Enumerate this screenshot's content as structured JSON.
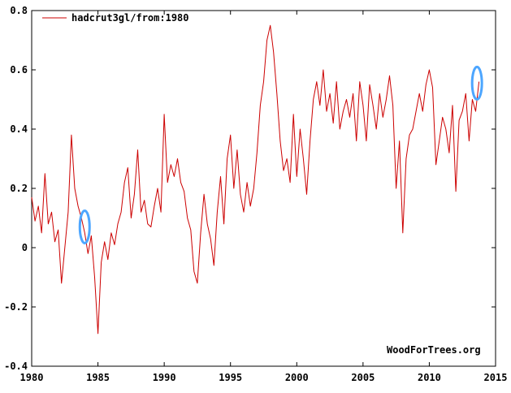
{
  "chart_data": {
    "type": "line",
    "title": "",
    "xlabel": "",
    "ylabel": "",
    "xlim": [
      1980,
      2015
    ],
    "ylim": [
      -0.4,
      0.8
    ],
    "grid": false,
    "legend_position": "top-left",
    "credit": "WoodForTrees.org",
    "x_ticks": [
      1980,
      1985,
      1990,
      1995,
      2000,
      2005,
      2010,
      2015
    ],
    "y_ticks": [
      -0.4,
      -0.2,
      0,
      0.2,
      0.4,
      0.6,
      0.8
    ],
    "y_tick_labels": [
      "-0.4",
      "-0.2",
      "0",
      "0.2",
      "0.4",
      "0.6",
      "0.8"
    ],
    "series": [
      {
        "name": "hadcrut3gl/from:1980",
        "color": "#cc0000",
        "x": [
          1980.0,
          1980.25,
          1980.5,
          1980.75,
          1981.0,
          1981.25,
          1981.5,
          1981.75,
          1982.0,
          1982.25,
          1982.5,
          1982.75,
          1983.0,
          1983.25,
          1983.5,
          1983.75,
          1984.0,
          1984.25,
          1984.5,
          1984.75,
          1985.0,
          1985.25,
          1985.5,
          1985.75,
          1986.0,
          1986.25,
          1986.5,
          1986.75,
          1987.0,
          1987.25,
          1987.5,
          1987.75,
          1988.0,
          1988.25,
          1988.5,
          1988.75,
          1989.0,
          1989.25,
          1989.5,
          1989.75,
          1990.0,
          1990.25,
          1990.5,
          1990.75,
          1991.0,
          1991.25,
          1991.5,
          1991.75,
          1992.0,
          1992.25,
          1992.5,
          1992.75,
          1993.0,
          1993.25,
          1993.5,
          1993.75,
          1994.0,
          1994.25,
          1994.5,
          1994.75,
          1995.0,
          1995.25,
          1995.5,
          1995.75,
          1996.0,
          1996.25,
          1996.5,
          1996.75,
          1997.0,
          1997.25,
          1997.5,
          1997.75,
          1998.0,
          1998.25,
          1998.5,
          1998.75,
          1999.0,
          1999.25,
          1999.5,
          1999.75,
          2000.0,
          2000.25,
          2000.5,
          2000.75,
          2001.0,
          2001.25,
          2001.5,
          2001.75,
          2002.0,
          2002.25,
          2002.5,
          2002.75,
          2003.0,
          2003.25,
          2003.5,
          2003.75,
          2004.0,
          2004.25,
          2004.5,
          2004.75,
          2005.0,
          2005.25,
          2005.5,
          2005.75,
          2006.0,
          2006.25,
          2006.5,
          2006.75,
          2007.0,
          2007.25,
          2007.5,
          2007.75,
          2008.0,
          2008.25,
          2008.5,
          2008.75,
          2009.0,
          2009.25,
          2009.5,
          2009.75,
          2010.0,
          2010.25,
          2010.5,
          2010.75,
          2011.0,
          2011.25,
          2011.5,
          2011.75,
          2012.0,
          2012.25,
          2012.5,
          2012.75,
          2013.0,
          2013.25,
          2013.5,
          2013.75
        ],
        "y": [
          0.17,
          0.09,
          0.14,
          0.05,
          0.25,
          0.08,
          0.12,
          0.02,
          0.06,
          -0.12,
          0.0,
          0.12,
          0.38,
          0.2,
          0.14,
          0.1,
          0.05,
          -0.02,
          0.04,
          -0.1,
          -0.29,
          -0.05,
          0.02,
          -0.04,
          0.05,
          0.01,
          0.08,
          0.12,
          0.22,
          0.27,
          0.1,
          0.18,
          0.33,
          0.12,
          0.16,
          0.08,
          0.07,
          0.14,
          0.2,
          0.12,
          0.45,
          0.22,
          0.28,
          0.24,
          0.3,
          0.22,
          0.19,
          0.1,
          0.06,
          -0.08,
          -0.12,
          0.05,
          0.18,
          0.08,
          0.03,
          -0.06,
          0.12,
          0.24,
          0.08,
          0.3,
          0.38,
          0.2,
          0.33,
          0.18,
          0.12,
          0.22,
          0.14,
          0.2,
          0.32,
          0.48,
          0.56,
          0.7,
          0.75,
          0.66,
          0.52,
          0.36,
          0.26,
          0.3,
          0.22,
          0.45,
          0.24,
          0.4,
          0.3,
          0.18,
          0.36,
          0.5,
          0.56,
          0.48,
          0.6,
          0.46,
          0.52,
          0.42,
          0.56,
          0.4,
          0.46,
          0.5,
          0.44,
          0.52,
          0.36,
          0.56,
          0.48,
          0.36,
          0.55,
          0.48,
          0.4,
          0.52,
          0.44,
          0.5,
          0.58,
          0.48,
          0.2,
          0.36,
          0.05,
          0.3,
          0.38,
          0.4,
          0.46,
          0.52,
          0.46,
          0.55,
          0.6,
          0.54,
          0.28,
          0.36,
          0.44,
          0.4,
          0.32,
          0.48,
          0.19,
          0.43,
          0.46,
          0.52,
          0.36,
          0.5,
          0.46,
          0.56
        ]
      }
    ]
  },
  "annotations": [
    {
      "label": "1984 marker",
      "x": 1984.0,
      "y": 0.07,
      "color": "#4da6ff"
    },
    {
      "label": "2013 marker",
      "x": 2013.6,
      "y": 0.555,
      "color": "#4da6ff"
    }
  ]
}
